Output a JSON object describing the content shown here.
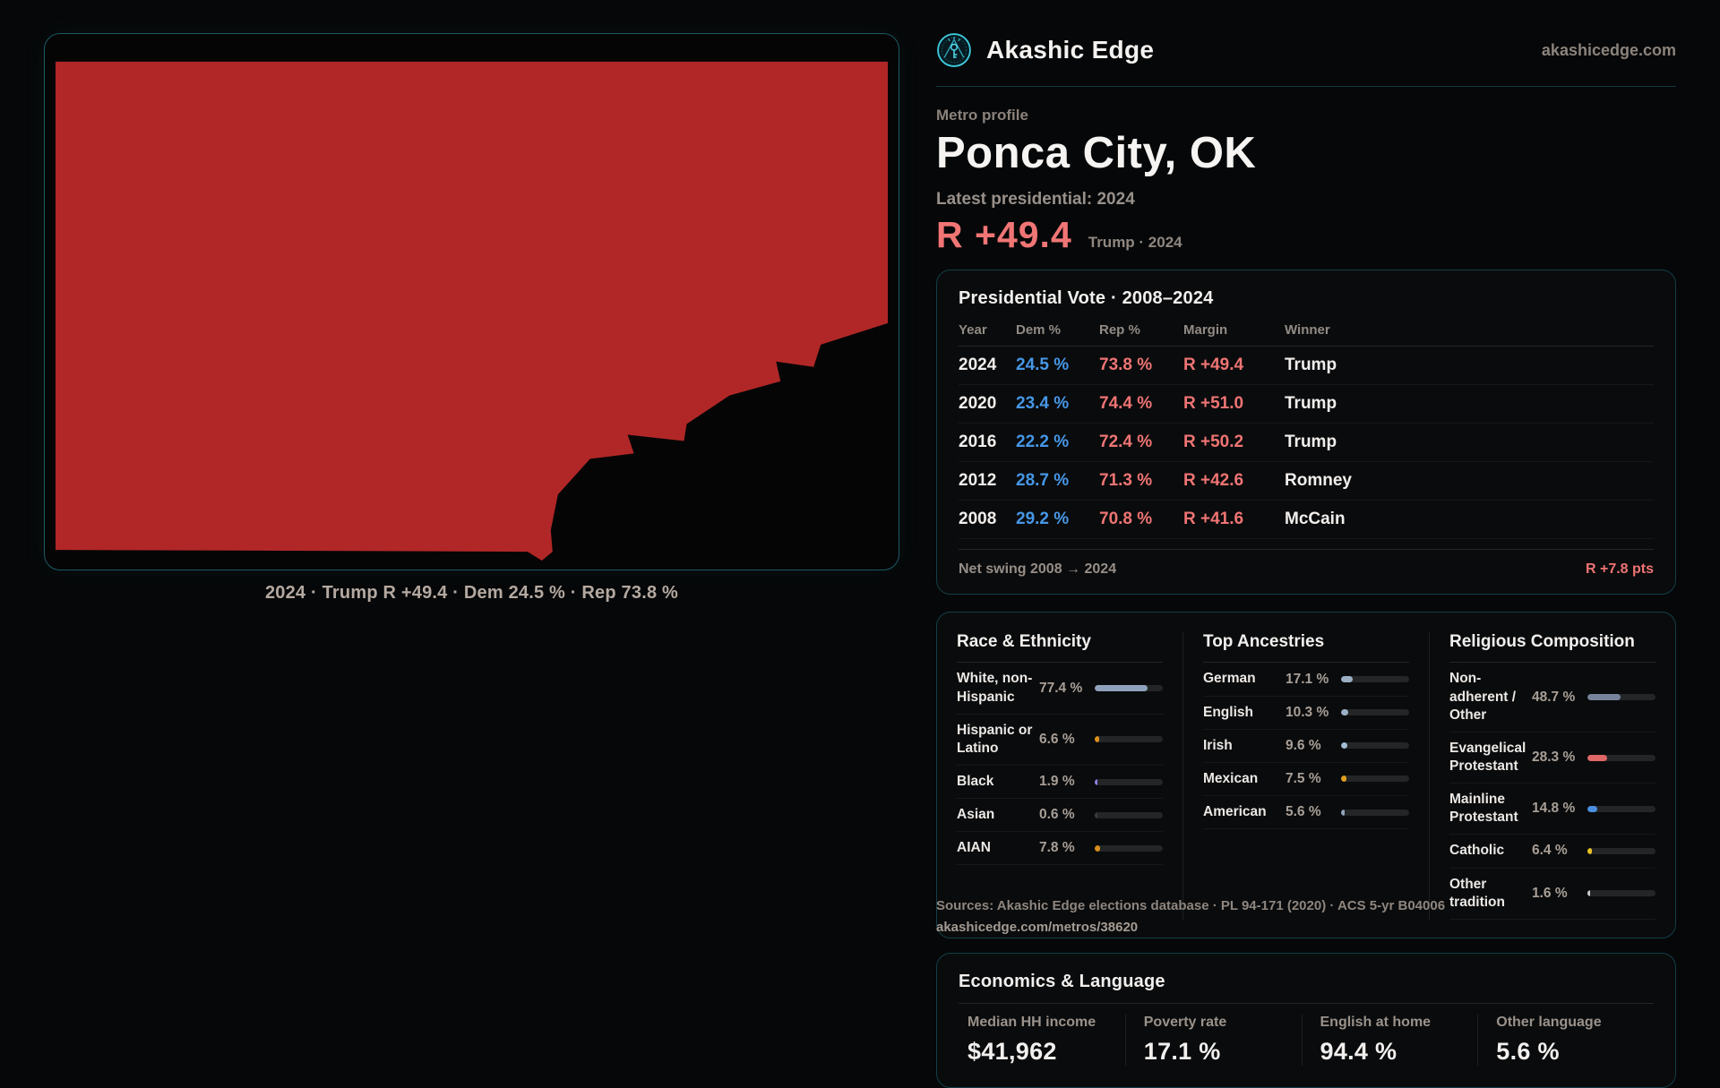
{
  "brand": {
    "name": "Akashic Edge",
    "domain": "akashicedge.com"
  },
  "colors": {
    "accent": "#3ecbdf",
    "dem_blue": "#4697e6",
    "rep_red": "#ef7474",
    "map_red": "#b12727"
  },
  "map": {
    "fill": "#b12727",
    "caption": "2024 · Trump R +49.4 · Dem 24.5 % · Rep 73.8 %"
  },
  "profile": {
    "kicker": "Metro profile",
    "title": "Ponca City, OK",
    "latest_label": "Latest presidential: 2024",
    "margin": "R +49.4",
    "margin_sub": "Trump · 2024"
  },
  "pres_table": {
    "title": "Presidential Vote · 2008–2024",
    "columns": [
      "Year",
      "Dem %",
      "Rep %",
      "Margin",
      "Winner"
    ],
    "rows": [
      {
        "year": "2024",
        "dem": "24.5 %",
        "rep": "73.8 %",
        "margin": "R +49.4",
        "winner": "Trump"
      },
      {
        "year": "2020",
        "dem": "23.4 %",
        "rep": "74.4 %",
        "margin": "R +51.0",
        "winner": "Trump"
      },
      {
        "year": "2016",
        "dem": "22.2 %",
        "rep": "72.4 %",
        "margin": "R +50.2",
        "winner": "Trump"
      },
      {
        "year": "2012",
        "dem": "28.7 %",
        "rep": "71.3 %",
        "margin": "R +42.6",
        "winner": "Romney"
      },
      {
        "year": "2008",
        "dem": "29.2 %",
        "rep": "70.8 %",
        "margin": "R +41.6",
        "winner": "McCain"
      }
    ],
    "footer": {
      "label": "Net swing 2008 → 2024",
      "value": "R +7.8 pts"
    }
  },
  "demographics": [
    {
      "title": "Race & Ethnicity",
      "rows": [
        {
          "label": "White, non-Hispanic",
          "value": "77.4 %",
          "pct": 77.4,
          "color": "#8fa2bb"
        },
        {
          "label": "Hispanic or Latino",
          "value": "6.6 %",
          "pct": 6.6,
          "color": "#de9019"
        },
        {
          "label": "Black",
          "value": "1.9 %",
          "pct": 1.9,
          "color": "#8b82e6"
        },
        {
          "label": "Asian",
          "value": "0.6 %",
          "pct": 0.6,
          "color": "#3a3d40"
        },
        {
          "label": "AIAN",
          "value": "7.8 %",
          "pct": 7.8,
          "color": "#d88f1c"
        }
      ]
    },
    {
      "title": "Top Ancestries",
      "rows": [
        {
          "label": "German",
          "value": "17.1 %",
          "pct": 17.1,
          "color": "#9bb0c4"
        },
        {
          "label": "English",
          "value": "10.3 %",
          "pct": 10.3,
          "color": "#9bb0c4"
        },
        {
          "label": "Irish",
          "value": "9.6 %",
          "pct": 9.6,
          "color": "#a4bdd4"
        },
        {
          "label": "Mexican",
          "value": "7.5 %",
          "pct": 7.5,
          "color": "#e0a01f"
        },
        {
          "label": "American",
          "value": "5.6 %",
          "pct": 5.6,
          "color": "#8fa3ba"
        }
      ]
    },
    {
      "title": "Religious Composition",
      "rows": [
        {
          "label": "Non-adherent / Other",
          "value": "48.7 %",
          "pct": 48.7,
          "color": "#76839b"
        },
        {
          "label": "Evangelical Protestant",
          "value": "28.3 %",
          "pct": 28.3,
          "color": "#e06767"
        },
        {
          "label": "Mainline Protestant",
          "value": "14.8 %",
          "pct": 14.8,
          "color": "#4a8fe0"
        },
        {
          "label": "Catholic",
          "value": "6.4 %",
          "pct": 6.4,
          "color": "#e8c125"
        },
        {
          "label": "Other tradition",
          "value": "1.6 %",
          "pct": 1.6,
          "color": "#cfcfcf"
        }
      ]
    }
  ],
  "economics": {
    "title": "Economics & Language",
    "stats": [
      {
        "label": "Median HH income",
        "value": "$41,962"
      },
      {
        "label": "Poverty rate",
        "value": "17.1 %"
      },
      {
        "label": "English at home",
        "value": "94.4 %"
      },
      {
        "label": "Other language",
        "value": "5.6 %"
      }
    ]
  },
  "sources": {
    "line1": "Sources: Akashic Edge elections database · PL 94-171 (2020) · ACS 5-yr B04006",
    "line2": "akashicedge.com/metros/38620"
  }
}
